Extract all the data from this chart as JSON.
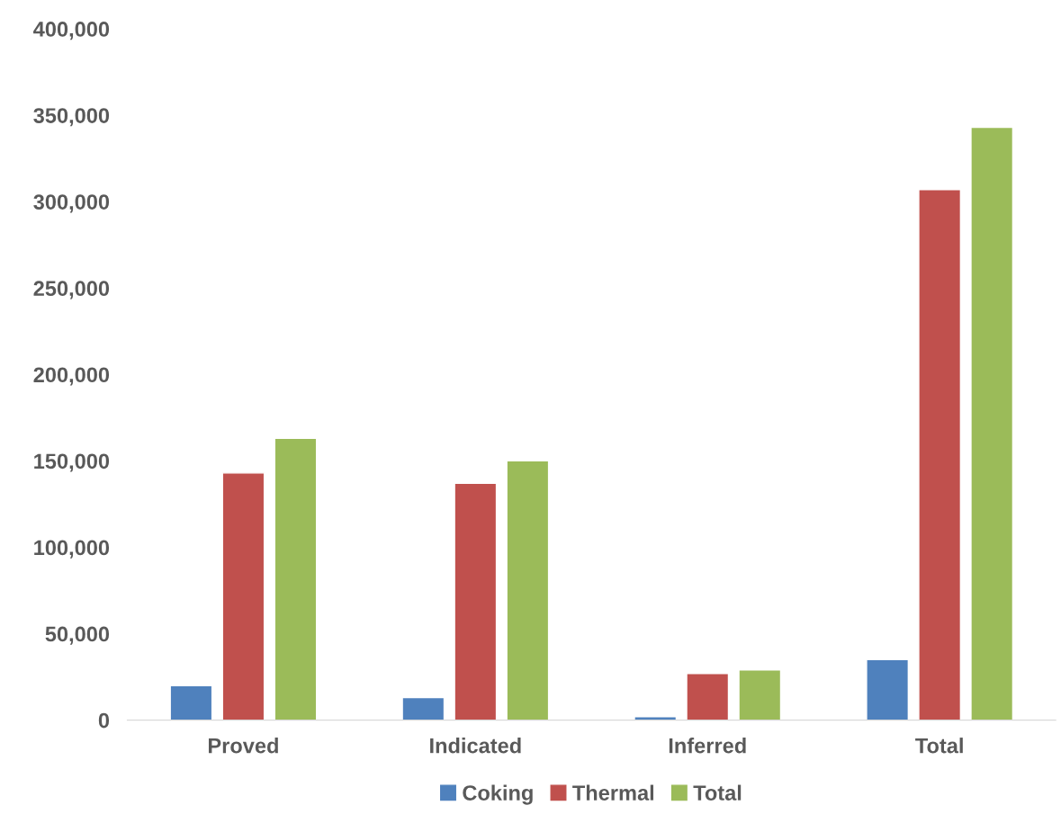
{
  "chart_data": {
    "type": "bar",
    "categories": [
      "Proved",
      "Indicated",
      "Inferred",
      "Total"
    ],
    "series": [
      {
        "name": "Coking",
        "color": "#4f81bd",
        "values": [
          20000,
          13000,
          2000,
          35000
        ]
      },
      {
        "name": "Thermal",
        "color": "#c0504d",
        "values": [
          143000,
          137000,
          27000,
          307000
        ]
      },
      {
        "name": "Total",
        "color": "#9bbb59",
        "values": [
          163000,
          150000,
          29000,
          343000
        ]
      }
    ],
    "ylim": [
      0,
      400000
    ],
    "yticks": [
      {
        "value": 0,
        "label": "0"
      },
      {
        "value": 50000,
        "label": "50,000"
      },
      {
        "value": 100000,
        "label": "100,000"
      },
      {
        "value": 150000,
        "label": "150,000"
      },
      {
        "value": 200000,
        "label": "200,000"
      },
      {
        "value": 250000,
        "label": "250,000"
      },
      {
        "value": 300000,
        "label": "300,000"
      },
      {
        "value": 350000,
        "label": "350,000"
      },
      {
        "value": 400000,
        "label": "400,000"
      }
    ],
    "grid": false,
    "legend": "bottom"
  }
}
